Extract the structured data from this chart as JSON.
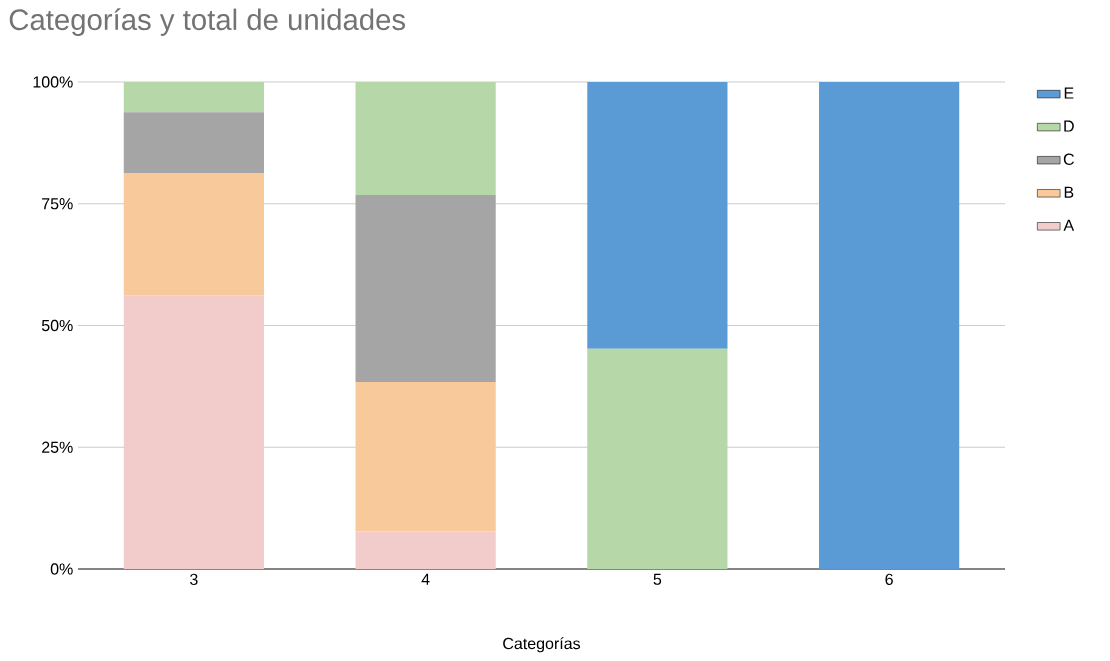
{
  "chart_data": {
    "type": "bar",
    "title": "Categorías y total de unidades",
    "xlabel": "Categorías",
    "categories": [
      "3",
      "4",
      "5",
      "6"
    ],
    "stacked": true,
    "series": [
      {
        "name": "A",
        "color": "#f2cbcb",
        "values": [
          56.2,
          7.7,
          0,
          0
        ]
      },
      {
        "name": "B",
        "color": "#f7c99b",
        "values": [
          25.0,
          30.7,
          0,
          0
        ]
      },
      {
        "name": "C",
        "color": "#a5a5a5",
        "values": [
          12.6,
          38.4,
          0,
          0
        ]
      },
      {
        "name": "D",
        "color": "#b6d7a8",
        "values": [
          6.2,
          23.2,
          45.2,
          0
        ]
      },
      {
        "name": "E",
        "color": "#5b9bd5",
        "values": [
          0,
          0,
          54.8,
          100
        ]
      }
    ],
    "ylim": [
      0,
      100
    ],
    "yticks": [
      {
        "value": 0,
        "label": "0%"
      },
      {
        "value": 25,
        "label": "25%"
      },
      {
        "value": 50,
        "label": "50%"
      },
      {
        "value": 75,
        "label": "75%"
      },
      {
        "value": 100,
        "label": "100%"
      }
    ],
    "grid": "y",
    "legend": "right"
  }
}
